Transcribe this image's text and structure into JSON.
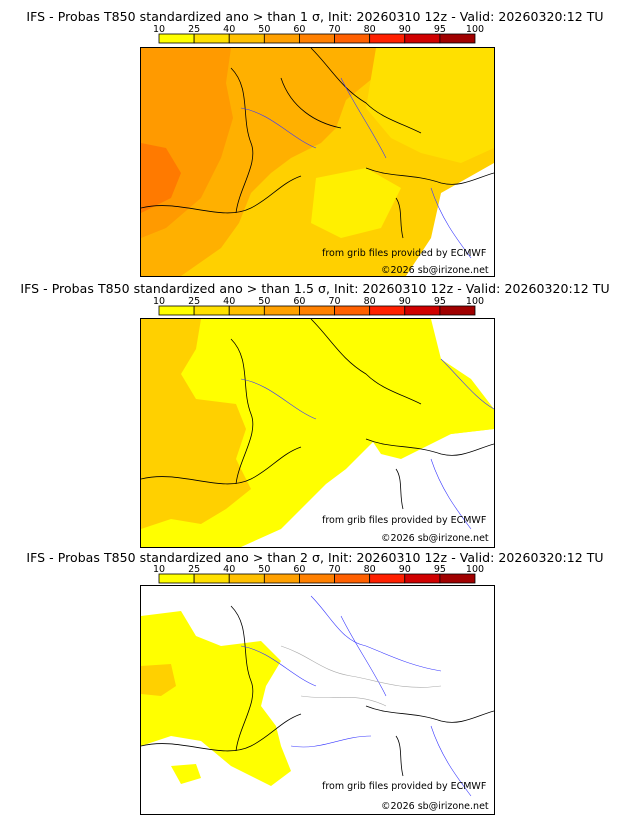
{
  "colorbar": {
    "ticks": [
      "10",
      "25",
      "40",
      "50",
      "60",
      "70",
      "80",
      "90",
      "95",
      "100"
    ],
    "colors": [
      "#ffff00",
      "#ffe000",
      "#ffc000",
      "#ffa000",
      "#ff8000",
      "#ff6000",
      "#ff2000",
      "#d00000",
      "#a00000"
    ]
  },
  "credits": {
    "source": "from grib files provided by ECMWF",
    "copyright": "©2026 sb@irizone.net"
  },
  "panels": [
    {
      "title": "IFS - Probas T850  standardized ano > than 1 σ, Init: 20260310 12z - Valid: 20260320:12 TU",
      "threshold_sigma": 1
    },
    {
      "title": "IFS - Probas T850  standardized ano > than 1.5 σ, Init: 20260310 12z - Valid: 20260320:12 TU",
      "threshold_sigma": 1.5
    },
    {
      "title": "IFS - Probas T850  standardized ano > than 2 σ, Init: 20260310 12z - Valid: 20260320:12 TU",
      "threshold_sigma": 2
    }
  ]
}
